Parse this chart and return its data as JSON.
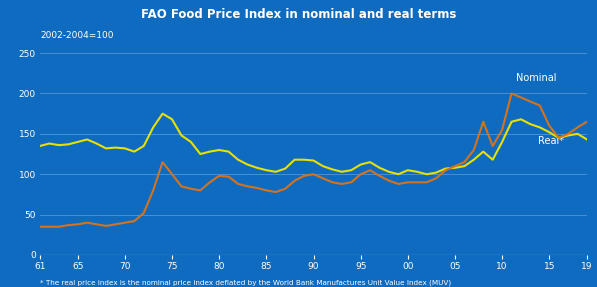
{
  "title": "FAO Food Price Index in nominal and real terms",
  "subtitle": "2002-2004=100",
  "footnote": "* The real price index is the nominal price index deflated by the World Bank Manufactures Unit Value Index (MUV)",
  "x_labels": [
    "61",
    "65",
    "70",
    "75",
    "80",
    "85",
    "90",
    "95",
    "00",
    "05",
    "10",
    "15",
    "19"
  ],
  "x_values": [
    1961,
    1965,
    1970,
    1975,
    1980,
    1985,
    1990,
    1995,
    2000,
    2005,
    2010,
    2015,
    2019
  ],
  "background_color": "#0F6BBF",
  "title_bg_color": "#2A3A8C",
  "nominal_color": "#D4731C",
  "real_color": "#E8E000",
  "grid_color": "#5599DD",
  "ylim": [
    0,
    260
  ],
  "yticks": [
    0,
    50,
    100,
    150,
    200,
    250
  ],
  "nominal_label": "Nominal",
  "real_label": "Real*",
  "nominal_data": {
    "years": [
      1961,
      1962,
      1963,
      1964,
      1965,
      1966,
      1967,
      1968,
      1969,
      1970,
      1971,
      1972,
      1973,
      1974,
      1975,
      1976,
      1977,
      1978,
      1979,
      1980,
      1981,
      1982,
      1983,
      1984,
      1985,
      1986,
      1987,
      1988,
      1989,
      1990,
      1991,
      1992,
      1993,
      1994,
      1995,
      1996,
      1997,
      1998,
      1999,
      2000,
      2001,
      2002,
      2003,
      2004,
      2005,
      2006,
      2007,
      2008,
      2009,
      2010,
      2011,
      2012,
      2013,
      2014,
      2015,
      2016,
      2017,
      2018,
      2019
    ],
    "values": [
      35,
      35,
      35,
      37,
      38,
      40,
      38,
      36,
      38,
      40,
      42,
      52,
      80,
      115,
      100,
      85,
      82,
      80,
      90,
      98,
      97,
      88,
      85,
      83,
      80,
      78,
      82,
      92,
      98,
      100,
      95,
      90,
      88,
      90,
      100,
      105,
      98,
      92,
      88,
      90,
      90,
      90,
      95,
      105,
      110,
      115,
      130,
      165,
      135,
      155,
      200,
      195,
      190,
      185,
      160,
      145,
      150,
      158,
      165
    ]
  },
  "real_data": {
    "years": [
      1961,
      1962,
      1963,
      1964,
      1965,
      1966,
      1967,
      1968,
      1969,
      1970,
      1971,
      1972,
      1973,
      1974,
      1975,
      1976,
      1977,
      1978,
      1979,
      1980,
      1981,
      1982,
      1983,
      1984,
      1985,
      1986,
      1987,
      1988,
      1989,
      1990,
      1991,
      1992,
      1993,
      1994,
      1995,
      1996,
      1997,
      1998,
      1999,
      2000,
      2001,
      2002,
      2003,
      2004,
      2005,
      2006,
      2007,
      2008,
      2009,
      2010,
      2011,
      2012,
      2013,
      2014,
      2015,
      2016,
      2017,
      2018,
      2019
    ],
    "values": [
      135,
      138,
      136,
      137,
      140,
      143,
      138,
      132,
      133,
      132,
      128,
      135,
      158,
      175,
      168,
      148,
      140,
      125,
      128,
      130,
      128,
      118,
      112,
      108,
      105,
      103,
      107,
      118,
      118,
      117,
      110,
      106,
      103,
      105,
      112,
      115,
      108,
      103,
      100,
      105,
      103,
      100,
      102,
      107,
      108,
      110,
      118,
      128,
      118,
      140,
      165,
      168,
      162,
      158,
      152,
      145,
      148,
      150,
      143
    ]
  }
}
